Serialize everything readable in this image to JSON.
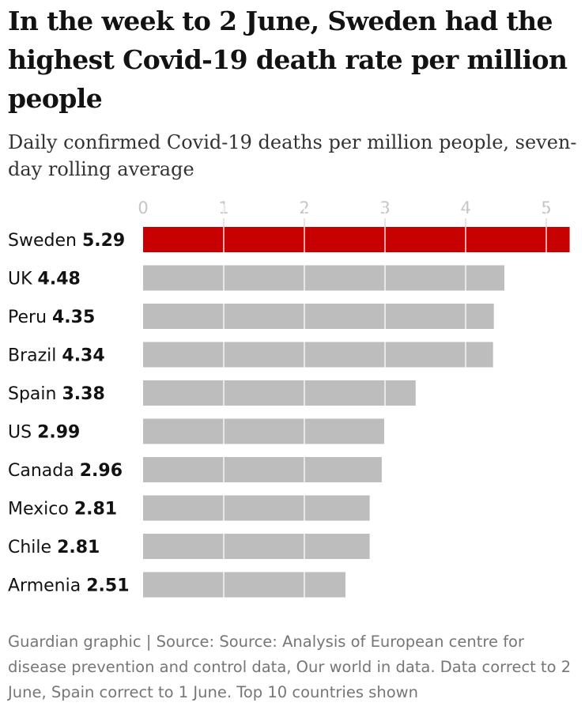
{
  "title": "In the week to 2 June, Sweden had the highest Covid-19 death rate per million people",
  "subtitle": "Daily confirmed Covid-19 deaths per million people, seven-day rolling average",
  "footer": "Guardian graphic | Source: Source: Analysis of European centre for disease prevention and control data, Our world in data. Data correct to 2 June, Spain correct to 1 June. Top 10 countries shown",
  "colors": {
    "highlight": "#c70000",
    "bar": "#bdbdbd",
    "tick": "#c5c5c5",
    "label": "#121212"
  },
  "chart_data": {
    "type": "bar",
    "orientation": "horizontal",
    "title": "In the week to 2 June, Sweden had the highest Covid-19 death rate per million people",
    "subtitle": "Daily confirmed Covid-19 deaths per million people, seven-day rolling average",
    "xlabel": "",
    "ylabel": "",
    "xlim": [
      0,
      5.33
    ],
    "xticks": [
      0,
      1,
      2,
      3,
      4,
      5
    ],
    "grid": true,
    "highlight": "Sweden",
    "categories": [
      "Sweden",
      "UK",
      "Peru",
      "Brazil",
      "Spain",
      "US",
      "Canada",
      "Mexico",
      "Chile",
      "Armenia"
    ],
    "values": [
      5.29,
      4.48,
      4.35,
      4.34,
      3.38,
      2.99,
      2.96,
      2.81,
      2.81,
      2.51
    ],
    "value_labels": [
      "5.29",
      "4.48",
      "4.35",
      "4.34",
      "3.38",
      "2.99",
      "2.96",
      "2.81",
      "2.81",
      "2.51"
    ]
  }
}
